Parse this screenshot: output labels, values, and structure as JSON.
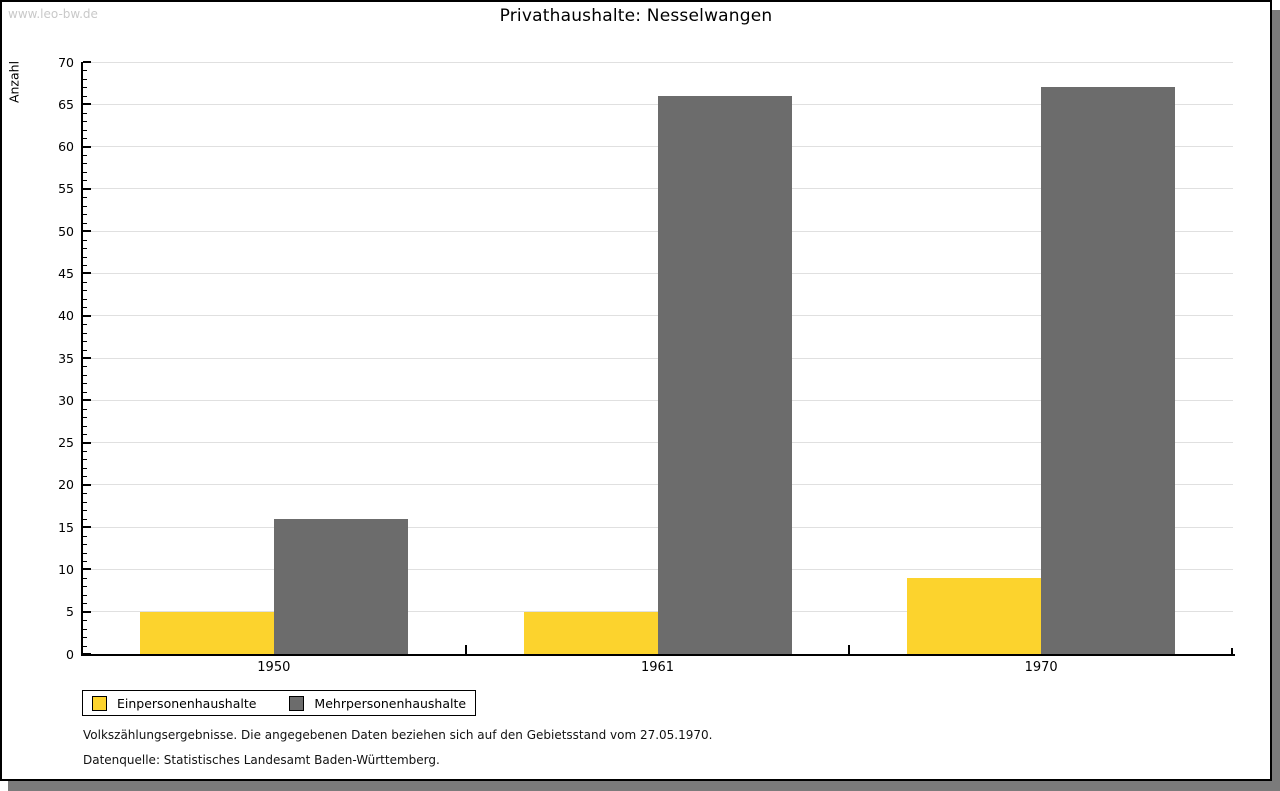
{
  "watermark": "www.leo-bw.de",
  "chart_data": {
    "type": "bar",
    "title": "Privathaushalte: Nesselwangen",
    "categories": [
      "1950",
      "1961",
      "1970"
    ],
    "series": [
      {
        "name": "Einpersonenhaushalte",
        "color": "#fcd32d",
        "values": [
          5,
          5,
          9
        ]
      },
      {
        "name": "Mehrpersonenhaushalte",
        "color": "#6c6c6c",
        "values": [
          16,
          66,
          67
        ]
      }
    ],
    "xlabel": "",
    "ylabel": "Anzahl",
    "ylim": [
      0,
      70
    ],
    "ytick_step": 5,
    "minor_tick_step": 1,
    "grid": "horizontal-major-light-gray",
    "legend_position": "bottom-left-boxed"
  },
  "footnotes": {
    "line1": "Volkszählungsergebnisse. Die angegebenen Daten beziehen sich auf den Gebietsstand vom 27.05.1970.",
    "line2": "Datenquelle: Statistisches Landesamt Baden-Württemberg."
  },
  "colors": {
    "series1": "#fcd32d",
    "series2": "#6c6c6c",
    "gridline": "#e0e0e0",
    "watermark": "#c9c9c9",
    "shadow": "#7b7b7b",
    "axis": "#000000"
  }
}
